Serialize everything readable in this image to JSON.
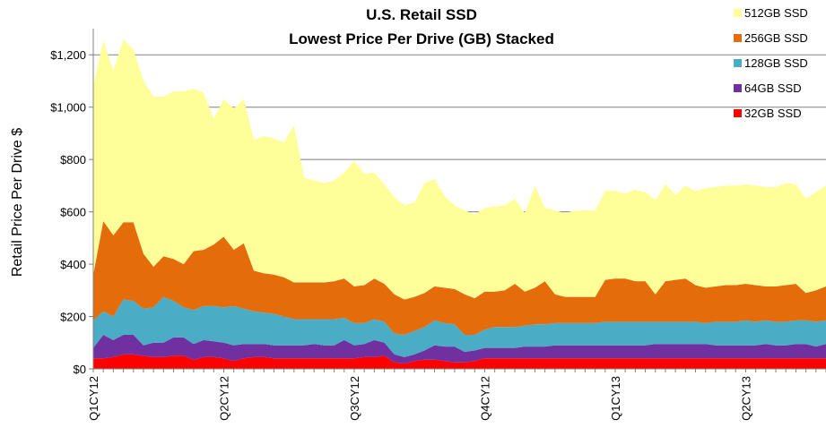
{
  "chart_data": {
    "type": "area",
    "stacked": true,
    "title": "U.S. Retail SSD",
    "subtitle": "Lowest Price Per Drive (GB) Stacked",
    "ylabel": "Retail Price Per Drive $",
    "xlabel": "",
    "ylim": [
      0,
      1300
    ],
    "yticks": [
      0,
      200,
      400,
      600,
      800,
      1000,
      1200
    ],
    "ytick_labels": [
      "$0",
      "$200",
      "$400",
      "$600",
      "$800",
      "$1,000",
      "$1,200"
    ],
    "xtick_labels": [
      "Q1CY12",
      "Q2CY12",
      "Q3CY12",
      "Q4CY12",
      "Q1CY13",
      "Q2CY13"
    ],
    "xtick_positions": [
      0,
      13,
      26,
      39,
      52,
      65
    ],
    "grid": "horizontal",
    "legend_position": "top-right",
    "x": [
      0,
      1,
      2,
      3,
      4,
      5,
      6,
      7,
      8,
      9,
      10,
      11,
      12,
      13,
      14,
      15,
      16,
      17,
      18,
      19,
      20,
      21,
      22,
      23,
      24,
      25,
      26,
      27,
      28,
      29,
      30,
      31,
      32,
      33,
      34,
      35,
      36,
      37,
      38,
      39,
      40,
      41,
      42,
      43,
      44,
      45,
      46,
      47,
      48,
      49,
      50,
      51,
      52,
      53,
      54,
      55,
      56,
      57,
      58,
      59,
      60,
      61,
      62,
      63,
      64,
      65,
      66,
      67,
      68,
      69,
      70,
      71,
      72,
      73
    ],
    "series": [
      {
        "name": "32GB SSD",
        "color": "#ff0000",
        "values": [
          40,
          40,
          45,
          55,
          55,
          50,
          45,
          45,
          50,
          50,
          35,
          45,
          45,
          40,
          30,
          40,
          45,
          45,
          40,
          40,
          40,
          40,
          40,
          40,
          40,
          40,
          40,
          45,
          45,
          50,
          25,
          20,
          30,
          35,
          35,
          30,
          25,
          25,
          30,
          40,
          40,
          40,
          40,
          40,
          40,
          40,
          40,
          40,
          40,
          40,
          40,
          40,
          40,
          40,
          40,
          40,
          40,
          40,
          40,
          40,
          40,
          40,
          40,
          40,
          40,
          40,
          40,
          40,
          40,
          40,
          40,
          40,
          40,
          40
        ]
      },
      {
        "name": "64GB SSD",
        "color": "#7030a0",
        "values": [
          40,
          90,
          65,
          75,
          75,
          40,
          55,
          55,
          70,
          70,
          60,
          65,
          60,
          60,
          60,
          55,
          50,
          50,
          50,
          50,
          50,
          50,
          55,
          50,
          50,
          70,
          50,
          50,
          65,
          50,
          30,
          25,
          25,
          35,
          55,
          55,
          60,
          40,
          40,
          40,
          40,
          40,
          40,
          45,
          45,
          45,
          50,
          50,
          50,
          50,
          50,
          50,
          50,
          50,
          50,
          50,
          55,
          55,
          55,
          55,
          55,
          55,
          50,
          50,
          50,
          50,
          50,
          55,
          50,
          50,
          55,
          55,
          45,
          55
        ]
      },
      {
        "name": "128GB SSD",
        "color": "#4bacc6",
        "values": [
          105,
          90,
          90,
          135,
          130,
          140,
          135,
          175,
          140,
          115,
          130,
          130,
          135,
          135,
          150,
          135,
          125,
          120,
          120,
          110,
          100,
          100,
          95,
          100,
          100,
          85,
          85,
          80,
          80,
          80,
          80,
          85,
          90,
          90,
          95,
          90,
          85,
          65,
          60,
          70,
          80,
          80,
          80,
          80,
          85,
          85,
          85,
          85,
          85,
          85,
          85,
          90,
          90,
          90,
          90,
          90,
          85,
          85,
          85,
          85,
          85,
          80,
          90,
          90,
          90,
          95,
          90,
          90,
          90,
          90,
          90,
          90,
          95,
          90
        ]
      },
      {
        "name": "256GB SSD",
        "color": "#e46c0a",
        "values": [
          175,
          345,
          310,
          295,
          300,
          210,
          155,
          155,
          160,
          165,
          225,
          215,
          235,
          270,
          215,
          250,
          155,
          150,
          150,
          150,
          140,
          140,
          140,
          140,
          145,
          150,
          140,
          145,
          155,
          145,
          150,
          135,
          130,
          130,
          130,
          135,
          135,
          155,
          140,
          145,
          135,
          140,
          165,
          130,
          140,
          165,
          110,
          100,
          100,
          100,
          100,
          160,
          165,
          165,
          155,
          155,
          105,
          155,
          160,
          165,
          140,
          135,
          135,
          140,
          140,
          140,
          140,
          130,
          135,
          140,
          140,
          105,
          120,
          130
        ]
      },
      {
        "name": "512GB SSD",
        "color": "#ffff99",
        "values": [
          720,
          690,
          630,
          700,
          660,
          660,
          650,
          610,
          640,
          660,
          620,
          600,
          480,
          525,
          540,
          550,
          500,
          525,
          520,
          515,
          600,
          400,
          390,
          380,
          385,
          405,
          480,
          425,
          405,
          380,
          370,
          360,
          360,
          420,
          410,
          350,
          320,
          320,
          320,
          320,
          325,
          325,
          325,
          300,
          390,
          280,
          320,
          320,
          330,
          330,
          330,
          340,
          335,
          325,
          350,
          340,
          360,
          370,
          325,
          355,
          360,
          380,
          380,
          380,
          380,
          380,
          380,
          380,
          380,
          390,
          380,
          360,
          375,
          385
        ]
      }
    ]
  }
}
